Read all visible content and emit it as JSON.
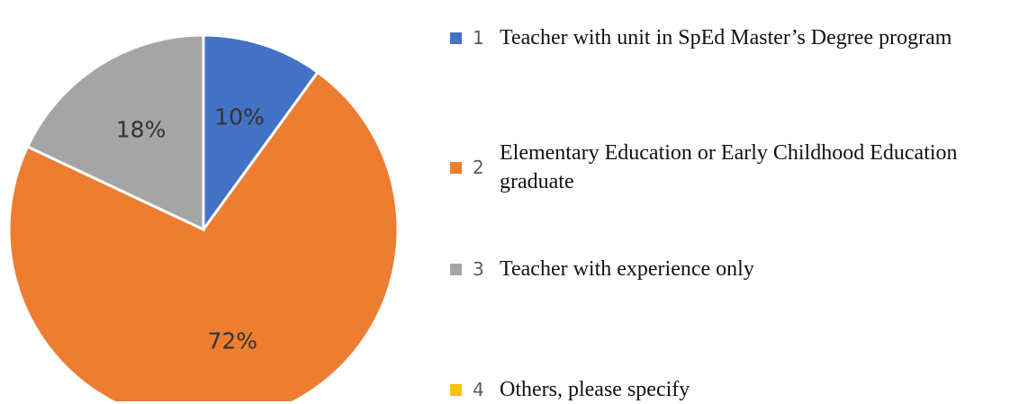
{
  "chart_data": {
    "type": "pie",
    "categories": [
      "1",
      "2",
      "3",
      "4"
    ],
    "descriptions": [
      "Teacher with unit in SpEd Master’s Degree program",
      "Elementary Education or Early Childhood Education graduate",
      "Teacher with experience only",
      "Others, please specify"
    ],
    "values": [
      10,
      72,
      18,
      0
    ],
    "value_labels": [
      "10%",
      "72%",
      "18%",
      null
    ],
    "colors": [
      "#4472c4",
      "#ed7d31",
      "#a5a5a5",
      "#ffc000"
    ]
  }
}
